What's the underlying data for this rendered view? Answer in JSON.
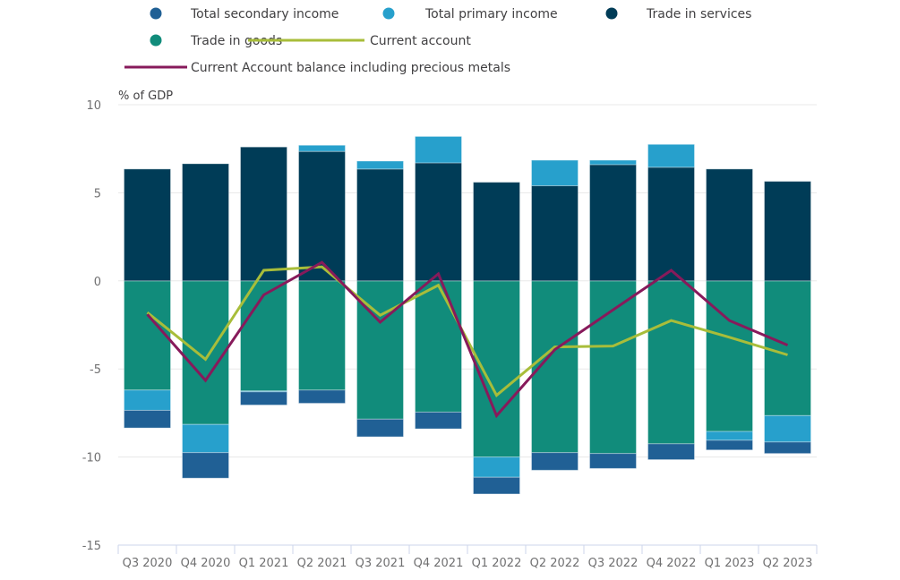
{
  "chart_data": {
    "type": "bar",
    "stacked": true,
    "title": "",
    "ylabel": "% of GDP",
    "xlabel": "",
    "ylim": [
      -15,
      10
    ],
    "yticks": [
      10,
      5,
      0,
      -5,
      -10,
      -15
    ],
    "ytick_labels": [
      "10",
      "5",
      "0",
      "-5",
      "-10",
      "-15"
    ],
    "grid": true,
    "legend_position": "top",
    "categories": [
      "Q3 2020",
      "Q4 2020",
      "Q1 2021",
      "Q2 2021",
      "Q3 2021",
      "Q4 2021",
      "Q1 2022",
      "Q2 2022",
      "Q3 2022",
      "Q4 2022",
      "Q1 2023",
      "Q2 2023"
    ],
    "series": [
      {
        "name": "Total secondary income",
        "type": "bar",
        "color": "#206095",
        "values": [
          -1.0,
          -1.45,
          -0.75,
          -0.75,
          -1.0,
          -0.95,
          -0.95,
          -1.0,
          -0.85,
          -0.9,
          -0.55,
          -0.65
        ]
      },
      {
        "name": "Total primary income",
        "type": "bar",
        "color": "#27a0cc",
        "values": [
          -1.15,
          -1.6,
          -0.05,
          0.35,
          0.45,
          1.5,
          -1.15,
          1.45,
          0.25,
          1.3,
          -0.5,
          -1.5
        ]
      },
      {
        "name": "Trade in services",
        "type": "bar",
        "color": "#003c57",
        "values": [
          6.35,
          6.65,
          7.6,
          7.35,
          6.35,
          6.7,
          5.6,
          5.4,
          6.6,
          6.45,
          6.35,
          5.65
        ]
      },
      {
        "name": "Trade in goods",
        "type": "bar",
        "color": "#118c7b",
        "values": [
          -6.2,
          -8.15,
          -6.25,
          -6.2,
          -7.85,
          -7.45,
          -10.0,
          -9.75,
          -9.8,
          -9.25,
          -8.55,
          -7.65
        ]
      },
      {
        "name": "Current account",
        "type": "line",
        "color": "#a8bd3a",
        "values": [
          -1.8,
          -4.45,
          0.6,
          0.8,
          -1.95,
          -0.25,
          -6.5,
          -3.75,
          -3.7,
          -2.25,
          -3.2,
          -4.2
        ]
      },
      {
        "name": "Current Account balance including precious metals",
        "type": "line",
        "color": "#871a5b",
        "values": [
          -1.9,
          -5.65,
          -0.8,
          1.05,
          -2.35,
          0.4,
          -7.65,
          -3.9,
          -1.65,
          0.6,
          -2.25,
          -3.65
        ]
      }
    ],
    "legend": {
      "rows": [
        [
          {
            "label": "Total secondary income",
            "marker": "circle",
            "color": "#206095"
          },
          {
            "label": "Total primary income",
            "marker": "circle",
            "color": "#27a0cc"
          },
          {
            "label": "Trade in services",
            "marker": "circle",
            "color": "#003c57"
          }
        ],
        [
          {
            "label": "Trade in goods",
            "marker": "circle",
            "color": "#118c7b"
          },
          {
            "label": "Current account",
            "marker": "line",
            "color": "#a8bd3a"
          }
        ],
        [
          {
            "label": "Current Account balance including precious metals",
            "marker": "line",
            "color": "#871a5b"
          }
        ]
      ]
    },
    "colors": {
      "gridline": "#e8e8e8",
      "axis": "#ccd6eb",
      "tick_text": "#707071"
    }
  }
}
